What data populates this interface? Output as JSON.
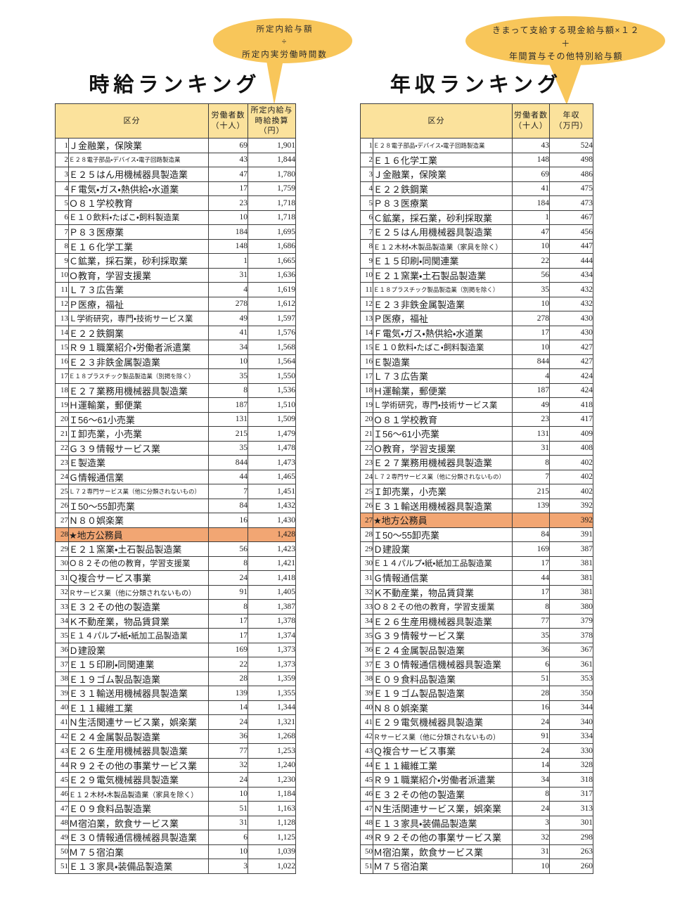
{
  "colors": {
    "header_bg": "#fbe29c",
    "callout_bg": "#f8c65a",
    "highlight_bg": "#f2a673",
    "border_color": "#3c3c3c"
  },
  "callouts": {
    "hourly": {
      "line1": "所定内給与額",
      "line2": "÷",
      "line3": "所定内実労働時間数"
    },
    "annual": {
      "line1": "きまって支給する現金給与額×１２",
      "line2": "＋",
      "line3": "年間賞与その他特別給与額"
    }
  },
  "tables": [
    {
      "id": "hourly",
      "title": "時給ランキング",
      "columns": {
        "category": "区分",
        "workers": "労働者数\n（十人）",
        "value": "所定内給与\n時給換算\n（円）"
      },
      "highlight_rank": 28,
      "rows": [
        [
          "Ｊ金融業，保険業",
          "69",
          "1,901"
        ],
        [
          "Ｅ２８電子部品・デバイス・電子回路製造業",
          "43",
          "1,844"
        ],
        [
          "Ｅ２５はん用機械器具製造業",
          "47",
          "1,780"
        ],
        [
          "Ｆ電気・ガス・熱供給・水道業",
          "17",
          "1,759"
        ],
        [
          "Ｏ８１学校教育",
          "23",
          "1,718"
        ],
        [
          "Ｅ１０飲料・たばこ・飼料製造業",
          "10",
          "1,718"
        ],
        [
          "Ｐ８３医療業",
          "184",
          "1,695"
        ],
        [
          "Ｅ１６化学工業",
          "148",
          "1,686"
        ],
        [
          "Ｃ鉱業，採石業，砂利採取業",
          "1",
          "1,665"
        ],
        [
          "Ｏ教育，学習支援業",
          "31",
          "1,636"
        ],
        [
          "Ｌ７３広告業",
          "4",
          "1,619"
        ],
        [
          "Ｐ医療，福祉",
          "278",
          "1,612"
        ],
        [
          "Ｌ学術研究，専門・技術サービス業",
          "49",
          "1,597"
        ],
        [
          "Ｅ２２鉄鋼業",
          "41",
          "1,576"
        ],
        [
          "Ｒ９１職業紹介・労働者派遣業",
          "34",
          "1,568"
        ],
        [
          "Ｅ２３非鉄金属製造業",
          "10",
          "1,564"
        ],
        [
          "Ｅ１８プラスチック製品製造業（別掲を除く）",
          "35",
          "1,550"
        ],
        [
          "Ｅ２７業務用機械器具製造業",
          "8",
          "1,536"
        ],
        [
          "Ｈ運輸業，郵便業",
          "187",
          "1,510"
        ],
        [
          "Ｉ56～61小売業",
          "131",
          "1,509"
        ],
        [
          "Ｉ卸売業，小売業",
          "215",
          "1,479"
        ],
        [
          "Ｇ３９情報サービス業",
          "35",
          "1,478"
        ],
        [
          "Ｅ製造業",
          "844",
          "1,473"
        ],
        [
          "Ｇ情報通信業",
          "44",
          "1,465"
        ],
        [
          "Ｌ７２専門サービス業（他に分類されないもの）",
          "7",
          "1,451"
        ],
        [
          "Ｉ50～55卸売業",
          "84",
          "1,432"
        ],
        [
          "Ｎ８０娯楽業",
          "16",
          "1,430"
        ],
        [
          "★地方公務員",
          "",
          "1,428"
        ],
        [
          "Ｅ２１窯業・土石製品製造業",
          "56",
          "1,423"
        ],
        [
          "Ｏ８２その他の教育，学習支援業",
          "8",
          "1,421"
        ],
        [
          "Ｑ複合サービス事業",
          "24",
          "1,418"
        ],
        [
          "Ｒサービス業（他に分類されないもの）",
          "91",
          "1,405"
        ],
        [
          "Ｅ３２その他の製造業",
          "8",
          "1,387"
        ],
        [
          "Ｋ不動産業，物品賃貸業",
          "17",
          "1,378"
        ],
        [
          "Ｅ１４パルプ・紙・紙加工品製造業",
          "17",
          "1,374"
        ],
        [
          "Ｄ建設業",
          "169",
          "1,373"
        ],
        [
          "Ｅ１５印刷・同関連業",
          "22",
          "1,373"
        ],
        [
          "Ｅ１９ゴム製品製造業",
          "28",
          "1,359"
        ],
        [
          "Ｅ３１輸送用機械器具製造業",
          "139",
          "1,355"
        ],
        [
          "Ｅ１１繊維工業",
          "14",
          "1,344"
        ],
        [
          "Ｎ生活関連サービス業，娯楽業",
          "24",
          "1,321"
        ],
        [
          "Ｅ２４金属製品製造業",
          "36",
          "1,268"
        ],
        [
          "Ｅ２６生産用機械器具製造業",
          "77",
          "1,253"
        ],
        [
          "Ｒ９２その他の事業サービス業",
          "32",
          "1,240"
        ],
        [
          "Ｅ２９電気機械器具製造業",
          "24",
          "1,230"
        ],
        [
          "Ｅ１２木材・木製品製造業（家具を除く）",
          "10",
          "1,184"
        ],
        [
          "Ｅ０９食料品製造業",
          "51",
          "1,163"
        ],
        [
          "Ｍ宿泊業，飲食サービス業",
          "31",
          "1,128"
        ],
        [
          "Ｅ３０情報通信機械器具製造業",
          "6",
          "1,125"
        ],
        [
          "Ｍ７５宿泊業",
          "10",
          "1,039"
        ],
        [
          "Ｅ１３家具・装備品製造業",
          "3",
          "1,022"
        ]
      ]
    },
    {
      "id": "annual",
      "title": "年収ランキング",
      "columns": {
        "category": "区分",
        "workers": "労働者数\n（十人）",
        "value": "年収\n（万円）"
      },
      "highlight_rank": 27,
      "rows": [
        [
          "Ｅ２８電子部品・デバイス・電子回路製造業",
          "43",
          "524"
        ],
        [
          "Ｅ１６化学工業",
          "148",
          "498"
        ],
        [
          "Ｊ金融業，保険業",
          "69",
          "486"
        ],
        [
          "Ｅ２２鉄鋼業",
          "41",
          "475"
        ],
        [
          "Ｐ８３医療業",
          "184",
          "473"
        ],
        [
          "Ｃ鉱業，採石業，砂利採取業",
          "1",
          "467"
        ],
        [
          "Ｅ２５はん用機械器具製造業",
          "47",
          "456"
        ],
        [
          "Ｅ１２木材・木製品製造業（家具を除く）",
          "10",
          "447"
        ],
        [
          "Ｅ１５印刷・同関連業",
          "22",
          "444"
        ],
        [
          "Ｅ２１窯業・土石製品製造業",
          "56",
          "434"
        ],
        [
          "Ｅ１８プラスチック製品製造業（別掲を除く）",
          "35",
          "432"
        ],
        [
          "Ｅ２３非鉄金属製造業",
          "10",
          "432"
        ],
        [
          "Ｐ医療，福祉",
          "278",
          "430"
        ],
        [
          "Ｆ電気・ガス・熱供給・水道業",
          "17",
          "430"
        ],
        [
          "Ｅ１０飲料・たばこ・飼料製造業",
          "10",
          "427"
        ],
        [
          "Ｅ製造業",
          "844",
          "427"
        ],
        [
          "Ｌ７３広告業",
          "4",
          "424"
        ],
        [
          "Ｈ運輸業，郵便業",
          "187",
          "424"
        ],
        [
          "Ｌ学術研究，専門・技術サービス業",
          "49",
          "418"
        ],
        [
          "Ｏ８１学校教育",
          "23",
          "417"
        ],
        [
          "Ｉ56～61小売業",
          "131",
          "409"
        ],
        [
          "Ｏ教育，学習支援業",
          "31",
          "408"
        ],
        [
          "Ｅ２７業務用機械器具製造業",
          "8",
          "402"
        ],
        [
          "Ｌ７２専門サービス業（他に分類されないもの）",
          "7",
          "402"
        ],
        [
          "Ｉ卸売業，小売業",
          "215",
          "402"
        ],
        [
          "Ｅ３１輸送用機械器具製造業",
          "139",
          "392"
        ],
        [
          "★地方公務員",
          "",
          "392"
        ],
        [
          "Ｉ50～55卸売業",
          "84",
          "391"
        ],
        [
          "Ｄ建設業",
          "169",
          "387"
        ],
        [
          "Ｅ１４パルプ・紙・紙加工品製造業",
          "17",
          "381"
        ],
        [
          "Ｇ情報通信業",
          "44",
          "381"
        ],
        [
          "Ｋ不動産業，物品賃貸業",
          "17",
          "381"
        ],
        [
          "Ｏ８２その他の教育，学習支援業",
          "8",
          "380"
        ],
        [
          "Ｅ２６生産用機械器具製造業",
          "77",
          "379"
        ],
        [
          "Ｇ３９情報サービス業",
          "35",
          "378"
        ],
        [
          "Ｅ２４金属製品製造業",
          "36",
          "367"
        ],
        [
          "Ｅ３０情報通信機械器具製造業",
          "6",
          "361"
        ],
        [
          "Ｅ０９食料品製造業",
          "51",
          "353"
        ],
        [
          "Ｅ１９ゴム製品製造業",
          "28",
          "350"
        ],
        [
          "Ｎ８０娯楽業",
          "16",
          "344"
        ],
        [
          "Ｅ２９電気機械器具製造業",
          "24",
          "340"
        ],
        [
          "Ｒサービス業（他に分類されないもの）",
          "91",
          "334"
        ],
        [
          "Ｑ複合サービス事業",
          "24",
          "330"
        ],
        [
          "Ｅ１１繊維工業",
          "14",
          "328"
        ],
        [
          "Ｒ９１職業紹介・労働者派遣業",
          "34",
          "318"
        ],
        [
          "Ｅ３２その他の製造業",
          "8",
          "317"
        ],
        [
          "Ｎ生活関連サービス業，娯楽業",
          "24",
          "313"
        ],
        [
          "Ｅ１３家具・装備品製造業",
          "3",
          "301"
        ],
        [
          "Ｒ９２その他の事業サービス業",
          "32",
          "298"
        ],
        [
          "Ｍ宿泊業，飲食サービス業",
          "31",
          "263"
        ],
        [
          "Ｍ７５宿泊業",
          "10",
          "260"
        ]
      ]
    }
  ]
}
